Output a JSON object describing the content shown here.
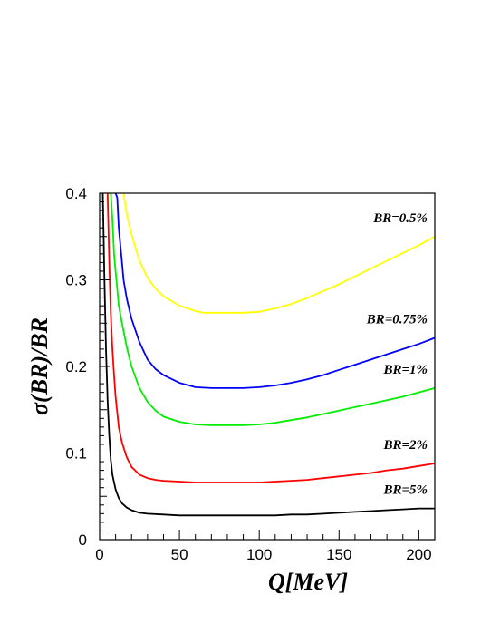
{
  "chart_data": {
    "type": "line",
    "title": "",
    "xlabel": "Q[MeV]",
    "ylabel": "σ(BR)/BR",
    "xlim": [
      0,
      210
    ],
    "ylim": [
      0,
      0.4
    ],
    "xticks": [
      "0",
      "50",
      "100",
      "150",
      "200"
    ],
    "yticks": [
      "0",
      "0.1",
      "0.2",
      "0.3",
      "0.4"
    ],
    "grid": false,
    "legend": "inline labels at right",
    "series": [
      {
        "name": "BR=0.5%",
        "color": "#ffff00",
        "x": [
          15,
          17,
          20,
          25,
          30,
          35,
          40,
          50,
          60,
          65,
          70,
          80,
          90,
          100,
          110,
          120,
          130,
          140,
          150,
          160,
          170,
          180,
          190,
          200,
          210
        ],
        "y": [
          0.4,
          0.375,
          0.352,
          0.322,
          0.302,
          0.29,
          0.281,
          0.27,
          0.264,
          0.262,
          0.262,
          0.262,
          0.262,
          0.263,
          0.267,
          0.272,
          0.279,
          0.287,
          0.295,
          0.304,
          0.313,
          0.322,
          0.331,
          0.34,
          0.35
        ]
      },
      {
        "name": "BR=0.75%",
        "color": "#0000ff",
        "x": [
          10,
          11,
          12,
          13,
          14,
          15,
          17,
          20,
          25,
          30,
          35,
          40,
          50,
          60,
          70,
          80,
          90,
          100,
          110,
          120,
          130,
          140,
          150,
          160,
          170,
          180,
          190,
          200,
          210
        ],
        "y": [
          0.4,
          0.395,
          0.36,
          0.34,
          0.32,
          0.3,
          0.278,
          0.255,
          0.228,
          0.208,
          0.197,
          0.19,
          0.181,
          0.176,
          0.175,
          0.175,
          0.175,
          0.176,
          0.178,
          0.181,
          0.185,
          0.19,
          0.196,
          0.202,
          0.208,
          0.214,
          0.22,
          0.226,
          0.233
        ]
      },
      {
        "name": "BR=1%",
        "color": "#00ee00",
        "x": [
          7,
          8,
          9,
          10,
          11,
          12,
          14,
          17,
          20,
          25,
          30,
          35,
          40,
          50,
          60,
          70,
          80,
          90,
          100,
          110,
          120,
          130,
          140,
          150,
          160,
          170,
          180,
          190,
          200,
          210
        ],
        "y": [
          0.4,
          0.37,
          0.33,
          0.31,
          0.29,
          0.27,
          0.25,
          0.222,
          0.2,
          0.175,
          0.159,
          0.149,
          0.142,
          0.136,
          0.133,
          0.132,
          0.132,
          0.132,
          0.133,
          0.135,
          0.138,
          0.141,
          0.145,
          0.149,
          0.153,
          0.157,
          0.161,
          0.165,
          0.17,
          0.175
        ]
      },
      {
        "name": "BR=2%",
        "color": "#ff0000",
        "x": [
          5,
          6,
          7,
          8,
          9,
          10,
          12,
          14,
          17,
          20,
          25,
          30,
          35,
          40,
          50,
          60,
          70,
          80,
          90,
          100,
          110,
          120,
          130,
          140,
          150,
          160,
          170,
          180,
          190,
          200,
          210
        ],
        "y": [
          0.4,
          0.32,
          0.26,
          0.22,
          0.19,
          0.165,
          0.13,
          0.112,
          0.095,
          0.084,
          0.075,
          0.071,
          0.069,
          0.068,
          0.067,
          0.066,
          0.066,
          0.066,
          0.066,
          0.066,
          0.067,
          0.068,
          0.069,
          0.071,
          0.073,
          0.075,
          0.077,
          0.08,
          0.082,
          0.085,
          0.088
        ]
      },
      {
        "name": "BR=5%",
        "color": "#000000",
        "x": [
          2,
          3,
          4,
          5,
          6,
          7,
          8,
          10,
          12,
          14,
          17,
          20,
          25,
          30,
          40,
          50,
          60,
          70,
          80,
          90,
          100,
          110,
          120,
          130,
          140,
          150,
          160,
          170,
          180,
          190,
          200,
          210
        ],
        "y": [
          0.4,
          0.3,
          0.22,
          0.16,
          0.12,
          0.092,
          0.075,
          0.058,
          0.048,
          0.042,
          0.037,
          0.034,
          0.031,
          0.03,
          0.029,
          0.028,
          0.028,
          0.028,
          0.028,
          0.028,
          0.028,
          0.028,
          0.029,
          0.029,
          0.03,
          0.031,
          0.032,
          0.033,
          0.034,
          0.035,
          0.036,
          0.036
        ]
      }
    ],
    "annotations": [
      {
        "text": "BR=0.5%",
        "series": 0
      },
      {
        "text": "BR=0.75%",
        "series": 1
      },
      {
        "text": "BR=1%",
        "series": 2
      },
      {
        "text": "BR=2%",
        "series": 3
      },
      {
        "text": "BR=5%",
        "series": 4
      }
    ]
  }
}
